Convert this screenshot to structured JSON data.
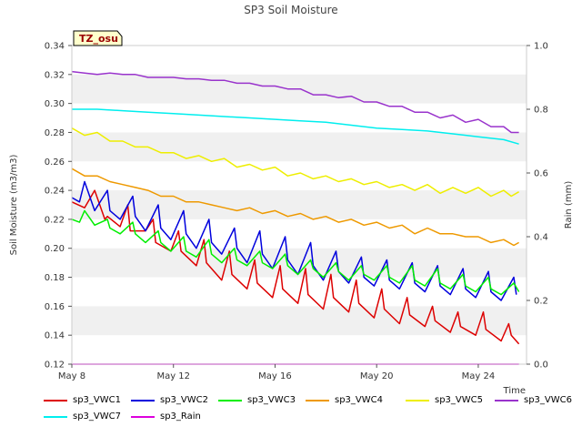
{
  "chart_data": {
    "type": "line",
    "title": "SP3 Soil Moisture",
    "xlabel": "Time",
    "ylabel": "Soil Moisture (m3/m3)",
    "y2label": "Rain (mm)",
    "site_label": "TZ_osu",
    "xlim": [
      8.0,
      25.9
    ],
    "ylim": [
      0.12,
      0.34
    ],
    "y2lim": [
      0.0,
      1.0
    ],
    "x_ticks": [
      8,
      12,
      16,
      20,
      24
    ],
    "x_tick_labels": [
      "May 8",
      "May 12",
      "May 16",
      "May 20",
      "May 24"
    ],
    "y_ticks": [
      0.12,
      0.14,
      0.16,
      0.18,
      0.2,
      0.22,
      0.24,
      0.26,
      0.28,
      0.3,
      0.32,
      0.34
    ],
    "y_tick_labels": [
      "0.12",
      "0.14",
      "0.16",
      "0.18",
      "0.20",
      "0.22",
      "0.24",
      "0.26",
      "0.28",
      "0.30",
      "0.32",
      "0.34"
    ],
    "y2_ticks": [
      0.0,
      0.2,
      0.4,
      0.6,
      0.8,
      1.0
    ],
    "y2_tick_labels": [
      "0.0",
      "0.2",
      "0.4",
      "0.6",
      "0.8",
      "1.0"
    ],
    "series": [
      {
        "name": "sp3_VWC1",
        "color": "#dd0000",
        "x": [
          8.0,
          8.5,
          8.9,
          9.3,
          9.4,
          9.9,
          10.2,
          10.3,
          10.9,
          11.2,
          11.3,
          11.9,
          12.2,
          12.3,
          12.9,
          13.2,
          13.3,
          13.9,
          14.2,
          14.3,
          14.9,
          15.2,
          15.3,
          15.9,
          16.2,
          16.3,
          16.9,
          17.2,
          17.3,
          17.9,
          18.2,
          18.3,
          18.9,
          19.2,
          19.3,
          19.9,
          20.2,
          20.3,
          20.9,
          21.2,
          21.3,
          21.9,
          22.2,
          22.3,
          22.9,
          23.2,
          23.3,
          23.9,
          24.2,
          24.3,
          24.9,
          25.2,
          25.3,
          25.6
        ],
        "values": [
          0.232,
          0.228,
          0.24,
          0.22,
          0.222,
          0.215,
          0.23,
          0.212,
          0.212,
          0.22,
          0.204,
          0.198,
          0.212,
          0.198,
          0.188,
          0.206,
          0.19,
          0.178,
          0.198,
          0.182,
          0.172,
          0.192,
          0.176,
          0.166,
          0.188,
          0.172,
          0.162,
          0.186,
          0.168,
          0.158,
          0.182,
          0.166,
          0.156,
          0.178,
          0.162,
          0.152,
          0.172,
          0.158,
          0.148,
          0.166,
          0.154,
          0.146,
          0.16,
          0.15,
          0.142,
          0.156,
          0.146,
          0.14,
          0.156,
          0.144,
          0.136,
          0.148,
          0.14,
          0.134
        ]
      },
      {
        "name": "sp3_VWC2",
        "color": "#0000dd",
        "x": [
          8.0,
          8.3,
          8.5,
          8.9,
          9.4,
          9.5,
          9.9,
          10.4,
          10.5,
          10.9,
          11.4,
          11.5,
          11.9,
          12.4,
          12.5,
          12.9,
          13.4,
          13.5,
          13.9,
          14.4,
          14.5,
          14.9,
          15.4,
          15.5,
          15.9,
          16.4,
          16.5,
          16.9,
          17.4,
          17.5,
          17.9,
          18.4,
          18.5,
          18.9,
          19.4,
          19.5,
          19.9,
          20.4,
          20.5,
          20.9,
          21.4,
          21.5,
          21.9,
          22.4,
          22.5,
          22.9,
          23.4,
          23.5,
          23.9,
          24.4,
          24.5,
          24.9,
          25.4,
          25.5
        ],
        "values": [
          0.235,
          0.232,
          0.246,
          0.226,
          0.24,
          0.226,
          0.22,
          0.236,
          0.222,
          0.212,
          0.23,
          0.214,
          0.206,
          0.226,
          0.21,
          0.2,
          0.22,
          0.204,
          0.196,
          0.214,
          0.2,
          0.19,
          0.212,
          0.196,
          0.186,
          0.208,
          0.192,
          0.182,
          0.204,
          0.188,
          0.178,
          0.198,
          0.184,
          0.176,
          0.194,
          0.18,
          0.174,
          0.192,
          0.178,
          0.172,
          0.19,
          0.176,
          0.17,
          0.188,
          0.174,
          0.168,
          0.186,
          0.172,
          0.166,
          0.184,
          0.17,
          0.164,
          0.18,
          0.168
        ]
      },
      {
        "name": "sp3_VWC3",
        "color": "#00ee00",
        "x": [
          8.0,
          8.3,
          8.5,
          8.9,
          9.4,
          9.5,
          9.9,
          10.4,
          10.5,
          10.9,
          11.4,
          11.5,
          11.9,
          12.4,
          12.5,
          12.9,
          13.4,
          13.5,
          13.9,
          14.4,
          14.5,
          14.9,
          15.4,
          15.5,
          15.9,
          16.4,
          16.5,
          16.9,
          17.4,
          17.5,
          17.9,
          18.4,
          18.5,
          18.9,
          19.4,
          19.5,
          19.9,
          20.4,
          20.5,
          20.9,
          21.4,
          21.5,
          21.9,
          22.4,
          22.5,
          22.9,
          23.4,
          23.5,
          23.9,
          24.4,
          24.5,
          24.9,
          25.4,
          25.6
        ],
        "values": [
          0.22,
          0.218,
          0.226,
          0.216,
          0.22,
          0.214,
          0.21,
          0.218,
          0.21,
          0.204,
          0.212,
          0.204,
          0.198,
          0.208,
          0.198,
          0.194,
          0.206,
          0.196,
          0.19,
          0.2,
          0.192,
          0.188,
          0.198,
          0.19,
          0.186,
          0.196,
          0.188,
          0.182,
          0.192,
          0.186,
          0.18,
          0.19,
          0.184,
          0.178,
          0.188,
          0.182,
          0.178,
          0.188,
          0.18,
          0.176,
          0.188,
          0.178,
          0.174,
          0.186,
          0.176,
          0.172,
          0.182,
          0.174,
          0.17,
          0.18,
          0.172,
          0.168,
          0.176,
          0.17
        ]
      },
      {
        "name": "sp3_VWC4",
        "color": "#ee9900",
        "x": [
          8.0,
          8.5,
          9.0,
          9.5,
          10.0,
          10.5,
          11.0,
          11.5,
          12.0,
          12.5,
          13.0,
          13.5,
          14.0,
          14.5,
          15.0,
          15.5,
          16.0,
          16.5,
          17.0,
          17.5,
          18.0,
          18.5,
          19.0,
          19.5,
          20.0,
          20.5,
          21.0,
          21.5,
          22.0,
          22.5,
          23.0,
          23.5,
          24.0,
          24.5,
          25.0,
          25.4,
          25.6
        ],
        "values": [
          0.255,
          0.25,
          0.25,
          0.246,
          0.244,
          0.242,
          0.24,
          0.236,
          0.236,
          0.232,
          0.232,
          0.23,
          0.228,
          0.226,
          0.228,
          0.224,
          0.226,
          0.222,
          0.224,
          0.22,
          0.222,
          0.218,
          0.22,
          0.216,
          0.218,
          0.214,
          0.216,
          0.21,
          0.214,
          0.21,
          0.21,
          0.208,
          0.208,
          0.204,
          0.206,
          0.202,
          0.204
        ]
      },
      {
        "name": "sp3_VWC5",
        "color": "#eeee00",
        "x": [
          8.0,
          8.5,
          9.0,
          9.5,
          10.0,
          10.5,
          11.0,
          11.5,
          12.0,
          12.5,
          13.0,
          13.5,
          14.0,
          14.5,
          15.0,
          15.5,
          16.0,
          16.5,
          17.0,
          17.5,
          18.0,
          18.5,
          19.0,
          19.5,
          20.0,
          20.5,
          21.0,
          21.5,
          22.0,
          22.5,
          23.0,
          23.5,
          24.0,
          24.5,
          25.0,
          25.3,
          25.6
        ],
        "values": [
          0.283,
          0.278,
          0.28,
          0.274,
          0.274,
          0.27,
          0.27,
          0.266,
          0.266,
          0.262,
          0.264,
          0.26,
          0.262,
          0.256,
          0.258,
          0.254,
          0.256,
          0.25,
          0.252,
          0.248,
          0.25,
          0.246,
          0.248,
          0.244,
          0.246,
          0.242,
          0.244,
          0.24,
          0.244,
          0.238,
          0.242,
          0.238,
          0.242,
          0.236,
          0.24,
          0.236,
          0.239
        ]
      },
      {
        "name": "sp3_VWC6",
        "color": "#9933cc",
        "x": [
          8.0,
          8.5,
          9.0,
          9.5,
          10.0,
          10.5,
          11.0,
          11.5,
          12.0,
          12.5,
          13.0,
          13.5,
          14.0,
          14.5,
          15.0,
          15.5,
          16.0,
          16.5,
          17.0,
          17.5,
          18.0,
          18.5,
          19.0,
          19.5,
          20.0,
          20.5,
          21.0,
          21.5,
          22.0,
          22.5,
          23.0,
          23.5,
          24.0,
          24.5,
          25.0,
          25.3,
          25.6
        ],
        "values": [
          0.322,
          0.321,
          0.32,
          0.321,
          0.32,
          0.32,
          0.318,
          0.318,
          0.318,
          0.317,
          0.317,
          0.316,
          0.316,
          0.314,
          0.314,
          0.312,
          0.312,
          0.31,
          0.31,
          0.306,
          0.306,
          0.304,
          0.305,
          0.301,
          0.301,
          0.298,
          0.298,
          0.294,
          0.294,
          0.29,
          0.292,
          0.287,
          0.289,
          0.284,
          0.284,
          0.28,
          0.28
        ]
      },
      {
        "name": "sp3_VWC7",
        "color": "#00eeee",
        "x": [
          8.0,
          9.0,
          10.0,
          11.0,
          12.0,
          13.0,
          14.0,
          15.0,
          16.0,
          17.0,
          18.0,
          19.0,
          20.0,
          21.0,
          22.0,
          23.0,
          24.0,
          25.0,
          25.6
        ],
        "values": [
          0.296,
          0.296,
          0.295,
          0.294,
          0.293,
          0.292,
          0.291,
          0.29,
          0.289,
          0.288,
          0.287,
          0.285,
          0.283,
          0.282,
          0.281,
          0.279,
          0.277,
          0.275,
          0.272
        ]
      },
      {
        "name": "sp3_Rain",
        "color": "#dd00dd",
        "axis": "right",
        "x": [
          8.0,
          25.6
        ],
        "values": [
          0.0,
          0.0
        ]
      }
    ]
  }
}
